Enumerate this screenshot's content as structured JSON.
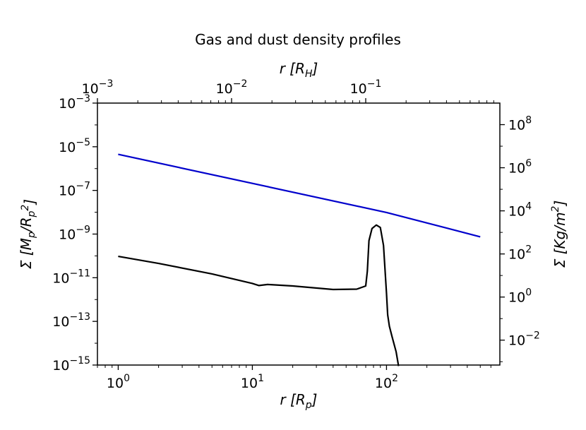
{
  "chart_data": {
    "type": "line",
    "title": "Gas and dust density profiles",
    "xlabel": "r [R_p]",
    "x2label": "r [R_H]",
    "ylabel": "Σ [M_p/R_p^2]",
    "y2label": "Σ [Kg/m^2]",
    "xscale": "log",
    "yscale": "log",
    "xlim": [
      0.7,
      700
    ],
    "ylim": [
      1e-15,
      0.001
    ],
    "x2lim": [
      0.001,
      1.0
    ],
    "y2lim": [
      0.0007,
      1000000000.0
    ],
    "x_ticks": [
      {
        "value": 1,
        "base": "10",
        "exp": "0"
      },
      {
        "value": 10,
        "base": "10",
        "exp": "1"
      },
      {
        "value": 100,
        "base": "10",
        "exp": "2"
      }
    ],
    "y_ticks": [
      {
        "value": 1e-15,
        "base": "10",
        "exp": "−15"
      },
      {
        "value": 1e-13,
        "base": "10",
        "exp": "−13"
      },
      {
        "value": 1e-11,
        "base": "10",
        "exp": "−11"
      },
      {
        "value": 1e-09,
        "base": "10",
        "exp": "−9"
      },
      {
        "value": 1e-07,
        "base": "10",
        "exp": "−7"
      },
      {
        "value": 1e-05,
        "base": "10",
        "exp": "−5"
      },
      {
        "value": 0.001,
        "base": "10",
        "exp": "−3"
      }
    ],
    "x2_ticks": [
      {
        "value": 0.001,
        "base": "10",
        "exp": "−3"
      },
      {
        "value": 0.01,
        "base": "10",
        "exp": "−2"
      },
      {
        "value": 0.1,
        "base": "10",
        "exp": "−1"
      }
    ],
    "y2_ticks": [
      {
        "value": 0.01,
        "base": "10",
        "exp": "−2"
      },
      {
        "value": 1,
        "base": "10",
        "exp": "0"
      },
      {
        "value": 100,
        "base": "10",
        "exp": "2"
      },
      {
        "value": 10000,
        "base": "10",
        "exp": "4"
      },
      {
        "value": 1000000,
        "base": "10",
        "exp": "6"
      },
      {
        "value": 100000000,
        "base": "10",
        "exp": "8"
      }
    ],
    "grid": false,
    "series": [
      {
        "color": "#0000cc",
        "x": [
          1.0,
          10,
          100,
          500
        ],
        "y": [
          4.5e-06,
          2.1e-07,
          9.8e-09,
          7.5e-10
        ]
      },
      {
        "color": "#000000",
        "x": [
          1.0,
          2,
          5,
          10,
          11.2,
          13,
          20,
          40,
          60,
          70,
          72,
          74,
          78,
          84,
          90,
          95,
          100,
          102,
          105,
          110,
          118,
          123
        ],
        "y": [
          9.5e-11,
          4.5e-11,
          1.5e-11,
          5.5e-12,
          4.4e-12,
          4.9e-12,
          4.2e-12,
          2.9e-12,
          3e-12,
          4.2e-12,
          2e-11,
          5e-10,
          1.8e-09,
          2.6e-09,
          2e-09,
          3e-10,
          2e-12,
          2e-13,
          6e-14,
          2e-14,
          4e-15,
          9e-16
        ]
      }
    ]
  }
}
